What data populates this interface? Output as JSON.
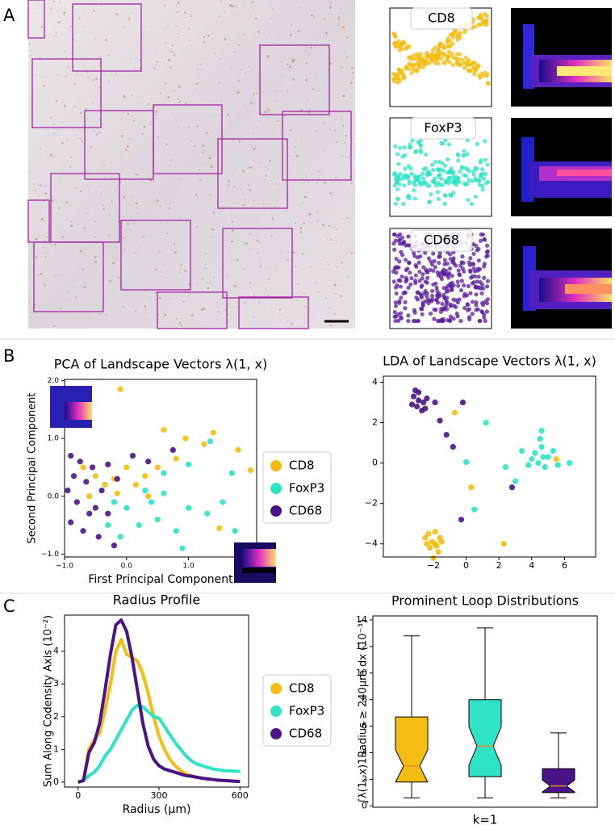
{
  "panel_labels": [
    "A",
    "B",
    "C"
  ],
  "panel_a": {
    "labels": [
      "CD8",
      "FoxP3",
      "CD68"
    ]
  },
  "chart_data": [
    {
      "type": "scatter",
      "title": "PCA of Landscape Vectors λ(1, x)",
      "xlabel": "First Principal Component",
      "ylabel": "Second Principal Component",
      "xlim": [
        -1.0,
        2.1
      ],
      "ylim": [
        -1.05,
        2.02
      ],
      "xticks": [
        {
          "value": -1,
          "label": "−1.0"
        },
        {
          "value": 0,
          "label": "0.0"
        },
        {
          "value": 1,
          "label": "1.0"
        }
      ],
      "yticks": [
        {
          "value": -1,
          "label": "−1.0"
        },
        {
          "value": 0,
          "label": "0.0"
        },
        {
          "value": 1,
          "label": "1.0"
        },
        {
          "value": 2,
          "label": "2.0"
        }
      ],
      "series": [
        {
          "name": "CD8",
          "color": "#f5bc12",
          "x": [
            -0.1,
            0.6,
            0.95,
            1.25,
            1.4,
            1.8,
            2.0,
            0.8,
            0.5,
            0.3,
            0.0,
            -0.2,
            -0.5,
            -0.6,
            -0.7,
            0.15,
            1.5,
            0.35,
            -0.35,
            -0.15
          ],
          "values": [
            1.85,
            1.15,
            1.0,
            0.9,
            1.1,
            0.8,
            0.45,
            0.65,
            0.5,
            0.35,
            0.5,
            0.3,
            0.35,
            0.0,
            0.5,
            0.2,
            -0.55,
            0.0,
            0.2,
            0.05
          ]
        },
        {
          "name": "FoxP3",
          "color": "#2ee3c6",
          "x": [
            1.35,
            1.0,
            1.7,
            0.6,
            0.3,
            0.0,
            -0.3,
            -0.1,
            0.2,
            0.5,
            0.8,
            1.0,
            1.3,
            1.75,
            1.8,
            0.9,
            0.4,
            -0.2,
            0.6,
            1.55
          ],
          "values": [
            0.95,
            0.55,
            0.4,
            0.4,
            0.1,
            -0.2,
            -0.5,
            -0.7,
            -0.5,
            -0.4,
            -0.6,
            -0.2,
            -0.3,
            -0.6,
            -0.85,
            -0.9,
            -0.1,
            -0.1,
            0.05,
            -0.1
          ]
        },
        {
          "name": "CD68",
          "color": "#4b1486",
          "x": [
            -0.9,
            -0.75,
            -0.55,
            -0.3,
            -0.85,
            -0.65,
            -0.4,
            -0.8,
            -0.6,
            -0.9,
            -0.7,
            -0.5,
            -0.3,
            0.1,
            0.35,
            -0.95,
            -0.45,
            -0.2,
            0.75,
            -0.15
          ],
          "values": [
            0.7,
            0.6,
            0.5,
            0.55,
            0.35,
            0.25,
            0.1,
            -0.1,
            -0.3,
            -0.45,
            -0.6,
            -0.2,
            -0.3,
            0.7,
            0.6,
            0.1,
            -0.7,
            -0.85,
            0.8,
            0.3
          ]
        }
      ]
    },
    {
      "type": "scatter",
      "title": "LDA of Landscape Vectors λ(1, x)",
      "xlim": [
        -5.05,
        7.9
      ],
      "ylim": [
        -4.65,
        4.3
      ],
      "xticks": [
        {
          "value": -2,
          "label": "−2"
        },
        0,
        2,
        4,
        6
      ],
      "yticks": [
        {
          "value": -4,
          "label": "−4"
        },
        {
          "value": -2,
          "label": "−2"
        },
        0,
        2,
        4
      ],
      "series": [
        {
          "color": "#f5bc12",
          "x": [
            -2.3,
            -1.9,
            -1.6,
            -2.1,
            -1.8,
            -2.4,
            -1.7,
            -2.0,
            -2.2,
            -1.5,
            -2.5,
            -1.9,
            0.3,
            -0.7,
            2.3,
            5.5
          ],
          "values": [
            -3.5,
            -3.4,
            -3.7,
            -3.9,
            -4.1,
            -4.0,
            -4.4,
            -4.7,
            -4.2,
            -3.9,
            -3.7,
            -4.0,
            -1.2,
            2.5,
            -4.0,
            0.2
          ]
        },
        {
          "color": "#2ee3c6",
          "x": [
            4.2,
            4.6,
            5.0,
            4.4,
            4.8,
            4.0,
            5.3,
            4.5,
            3.8,
            5.6,
            4.7,
            3.4,
            6.3,
            1.2,
            0.0,
            0.5,
            2.4,
            3.0,
            4.6
          ],
          "values": [
            0.5,
            0.8,
            0.3,
            0.0,
            -0.2,
            0.2,
            0.6,
            1.2,
            -0.1,
            -0.1,
            0.3,
            0.6,
            0.0,
            2.0,
            0.05,
            -2.3,
            -0.2,
            -0.9,
            1.6
          ]
        },
        {
          "color": "#4b1486",
          "x": [
            -3.2,
            -2.9,
            -2.6,
            -3.0,
            -2.7,
            -3.3,
            -2.4,
            -2.9,
            -2.5,
            -3.1,
            -1.6,
            -1.2,
            -0.8,
            -0.2,
            -0.3,
            2.8,
            -1.9
          ],
          "values": [
            3.3,
            3.1,
            3.0,
            2.8,
            2.6,
            2.9,
            3.2,
            3.5,
            2.7,
            3.6,
            2.1,
            1.4,
            0.8,
            3.0,
            -2.8,
            -1.2,
            3.0
          ]
        }
      ]
    },
    {
      "type": "line",
      "title": "Radius Profile",
      "xlabel": "Radius (μm)",
      "ylabel": "Sum Along Codensity Axis (10⁻²)",
      "xlim": [
        -50,
        632
      ],
      "ylim": [
        -0.15,
        5.1
      ],
      "xticks": [
        0,
        300,
        600
      ],
      "yticks": [
        0,
        1,
        2,
        3,
        4
      ],
      "x": [
        0,
        20,
        40,
        60,
        80,
        100,
        120,
        140,
        160,
        180,
        200,
        220,
        240,
        260,
        280,
        300,
        320,
        340,
        360,
        380,
        400,
        420,
        440,
        460,
        480,
        500,
        520,
        540,
        560,
        580,
        600
      ],
      "series": [
        {
          "name": "CD8",
          "color": "#f5bc12",
          "values": [
            0,
            0.05,
            1.0,
            1.3,
            1.5,
            2.2,
            3.0,
            4.0,
            4.35,
            3.9,
            3.8,
            3.7,
            3.3,
            2.7,
            2.0,
            1.4,
            1.0,
            0.7,
            0.5,
            0.35,
            0.25,
            0.2,
            0.15,
            0.12,
            0.1,
            0.08,
            0.06,
            0.05,
            0.04,
            0.03,
            0.03
          ]
        },
        {
          "name": "FoxP3",
          "color": "#2ee3c6",
          "values": [
            0,
            0.05,
            0.2,
            0.3,
            0.5,
            0.8,
            1.0,
            1.3,
            1.6,
            1.9,
            2.2,
            2.35,
            2.3,
            2.15,
            2.0,
            1.95,
            1.7,
            1.45,
            1.2,
            1.0,
            0.8,
            0.65,
            0.55,
            0.5,
            0.45,
            0.4,
            0.38,
            0.35,
            0.35,
            0.33,
            0.33
          ]
        },
        {
          "name": "CD68",
          "color": "#4b1486",
          "values": [
            0,
            0.05,
            0.9,
            1.2,
            1.8,
            2.8,
            3.9,
            4.8,
            4.95,
            4.6,
            3.8,
            2.8,
            1.8,
            1.1,
            0.7,
            0.5,
            0.4,
            0.35,
            0.3,
            0.25,
            0.2,
            0.18,
            0.15,
            0.12,
            0.1,
            0.08,
            0.06,
            0.05,
            0.04,
            0.03,
            0.02
          ]
        }
      ]
    },
    {
      "type": "box",
      "title": "Prominent Loop Distributions",
      "xlabel": "k=1",
      "ylabel": "∫λ(1, x)1Radius ≥ 240μm dx (10⁻³)",
      "ylim": [
        -0.1,
        14.3
      ],
      "yticks": [
        0,
        2,
        4,
        6,
        8,
        10,
        12,
        14
      ],
      "series": [
        {
          "color": "#f5bc12",
          "whislo": 0.6,
          "q1": 1.8,
          "med": 3.0,
          "q3": 6.7,
          "whishi": 12.8
        },
        {
          "color": "#2ee3c6",
          "whislo": 0.6,
          "q1": 2.2,
          "med": 4.5,
          "q3": 8.0,
          "whishi": 13.4
        },
        {
          "color": "#4b1486",
          "whislo": 0.6,
          "q1": 1.0,
          "med": 1.5,
          "q3": 2.8,
          "whishi": 5.5
        }
      ]
    }
  ]
}
